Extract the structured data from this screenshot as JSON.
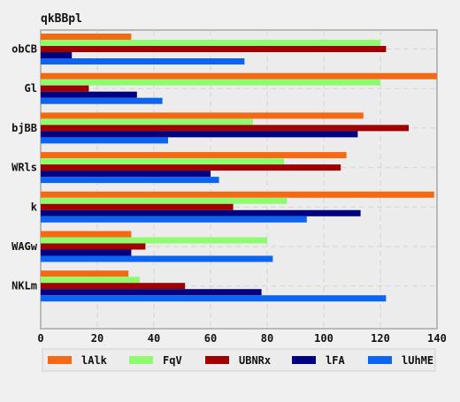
{
  "chart_data": {
    "type": "bar",
    "orientation": "horizontal",
    "title": "qkBBpl",
    "xlabel": "",
    "ylabel": "",
    "categories": [
      "obCB",
      "Gl",
      "bjBB",
      "WRls",
      "k",
      "WAGw",
      "NKLm"
    ],
    "series": [
      {
        "name": "lAlk",
        "color": "#f46a14",
        "values": [
          32,
          140,
          114,
          108,
          139,
          32,
          31
        ]
      },
      {
        "name": "FqV",
        "color": "#8efc6e",
        "values": [
          120,
          120,
          75,
          86,
          87,
          80,
          35
        ]
      },
      {
        "name": "UBNRx",
        "color": "#a00000",
        "values": [
          122,
          17,
          130,
          106,
          68,
          37,
          51
        ]
      },
      {
        "name": "lFA",
        "color": "#000080",
        "values": [
          11,
          34,
          112,
          60,
          113,
          32,
          78
        ]
      },
      {
        "name": "lUhME",
        "color": "#0d64f0",
        "values": [
          72,
          43,
          45,
          63,
          94,
          82,
          122
        ]
      }
    ],
    "xlim": [
      0,
      140
    ],
    "xticks": [
      0,
      20,
      40,
      60,
      80,
      100,
      120,
      140
    ],
    "grid": true,
    "legend_position": "bottom"
  }
}
